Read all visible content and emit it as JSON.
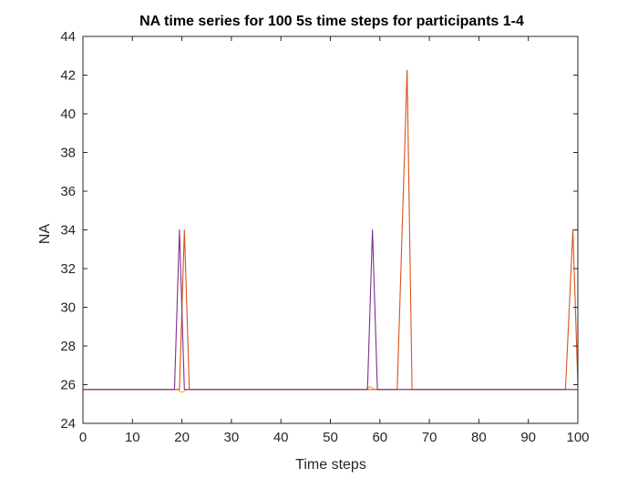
{
  "chart_data": {
    "type": "line",
    "title": "NA time series for 100 5s time steps for participants 1-4",
    "xlabel": "Time steps",
    "ylabel": "NA",
    "xlim": [
      0,
      100
    ],
    "ylim": [
      24,
      44
    ],
    "xticks": [
      0,
      10,
      20,
      30,
      40,
      50,
      60,
      70,
      80,
      90,
      100
    ],
    "yticks": [
      24,
      26,
      28,
      30,
      32,
      34,
      36,
      38,
      40,
      42,
      44
    ],
    "grid": false,
    "legend": "none",
    "series": [
      {
        "color": "#EDB120",
        "x": [
          0,
          19,
          20,
          21,
          57,
          58,
          59,
          100
        ],
        "y": [
          25.75,
          25.75,
          25.6,
          25.75,
          25.75,
          25.9,
          25.75,
          25.75
        ]
      },
      {
        "color": "#D95319",
        "x": [
          0,
          19.5,
          20.5,
          21.5,
          63.5,
          65.5,
          66.5,
          97.5,
          99,
          100
        ],
        "y": [
          25.75,
          25.75,
          34,
          25.75,
          25.75,
          42.25,
          25.75,
          25.75,
          34,
          26
        ]
      },
      {
        "color": "#7E2F8E",
        "x": [
          0,
          18.5,
          19.5,
          20.5,
          57.5,
          58.5,
          59.5,
          100
        ],
        "y": [
          25.75,
          25.75,
          34,
          25.75,
          25.75,
          34,
          25.75,
          25.75
        ]
      }
    ]
  }
}
